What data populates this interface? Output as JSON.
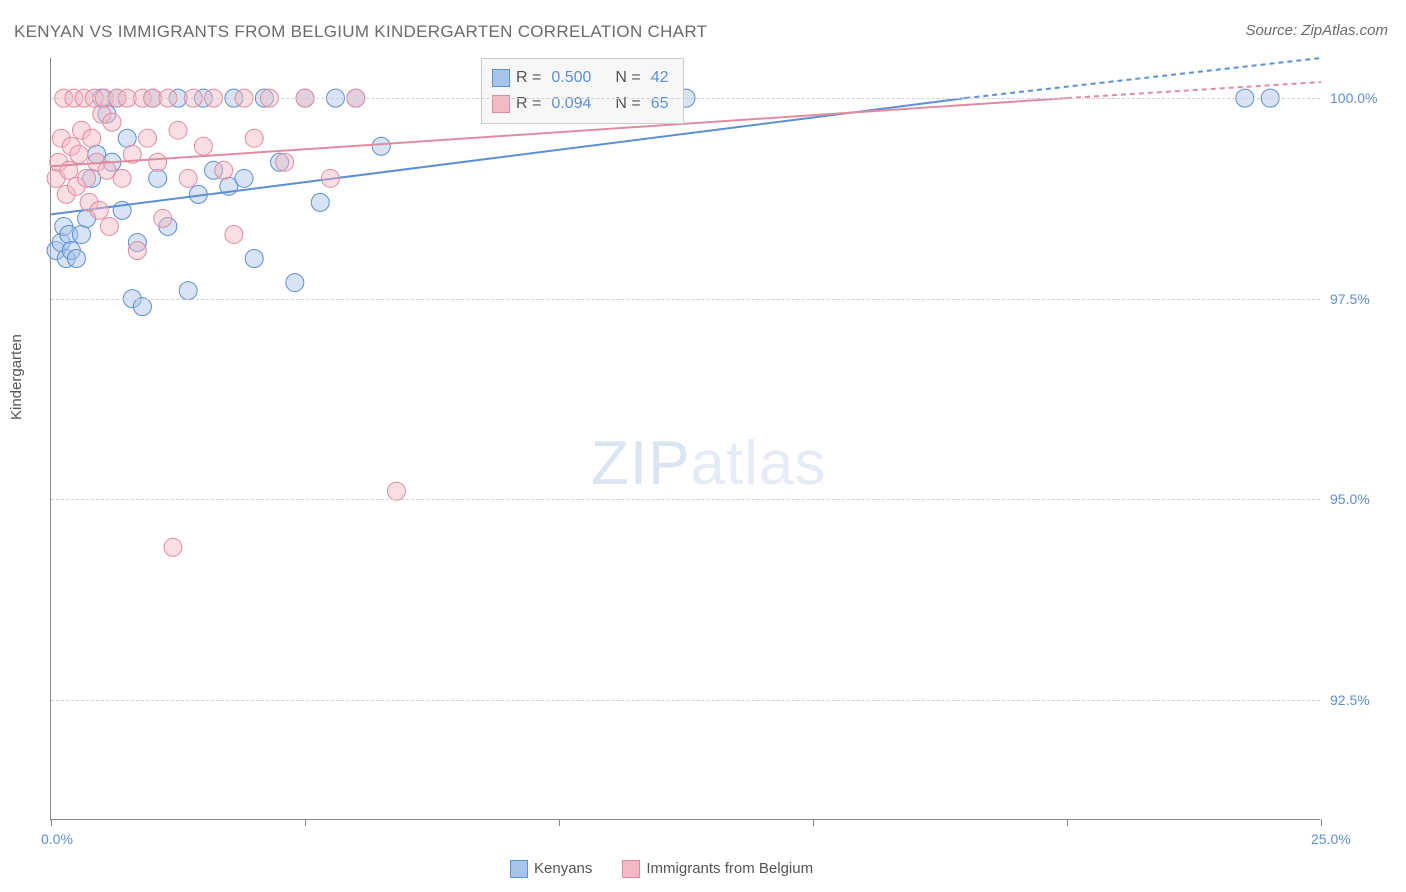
{
  "title": "KENYAN VS IMMIGRANTS FROM BELGIUM KINDERGARTEN CORRELATION CHART",
  "source": "Source: ZipAtlas.com",
  "y_axis_label": "Kindergarten",
  "watermark_zip": "ZIP",
  "watermark_atlas": "atlas",
  "chart": {
    "type": "scatter",
    "background_color": "#ffffff",
    "grid_color": "#d0d0d0",
    "axis_color": "#888888",
    "text_color": "#6b6b6b",
    "tick_label_color": "#5b8fd6",
    "xlim": [
      0.0,
      25.0
    ],
    "ylim": [
      91.0,
      100.5
    ],
    "x_ticks": [
      0.0,
      25.0
    ],
    "x_tick_labels": [
      "0.0%",
      "25.0%"
    ],
    "x_minor_ticks": [
      5.0,
      10.0,
      15.0,
      20.0
    ],
    "y_ticks": [
      92.5,
      95.0,
      97.5,
      100.0
    ],
    "y_tick_labels": [
      "92.5%",
      "95.0%",
      "97.5%",
      "100.0%"
    ],
    "marker_radius": 9,
    "marker_opacity": 0.45,
    "line_width": 2,
    "series": [
      {
        "name": "Kenyans",
        "color": "#5b8fd6",
        "fill": "#a8c4e8",
        "R": "0.500",
        "N": "42",
        "trend": {
          "x1": 0.0,
          "y1": 98.55,
          "x2": 18.0,
          "y2": 100.0
        },
        "trend_dashed": {
          "x1": 18.0,
          "y1": 100.0,
          "x2": 25.0,
          "y2": 100.5
        },
        "points": [
          [
            0.1,
            98.1
          ],
          [
            0.2,
            98.2
          ],
          [
            0.25,
            98.4
          ],
          [
            0.3,
            98.0
          ],
          [
            0.35,
            98.3
          ],
          [
            0.4,
            98.1
          ],
          [
            0.5,
            98.0
          ],
          [
            0.6,
            98.3
          ],
          [
            0.7,
            98.5
          ],
          [
            0.8,
            99.0
          ],
          [
            0.9,
            99.3
          ],
          [
            1.0,
            100.0
          ],
          [
            1.1,
            99.8
          ],
          [
            1.2,
            99.2
          ],
          [
            1.3,
            100.0
          ],
          [
            1.4,
            98.6
          ],
          [
            1.5,
            99.5
          ],
          [
            1.6,
            97.5
          ],
          [
            1.7,
            98.2
          ],
          [
            1.8,
            97.4
          ],
          [
            2.0,
            100.0
          ],
          [
            2.1,
            99.0
          ],
          [
            2.3,
            98.4
          ],
          [
            2.5,
            100.0
          ],
          [
            2.7,
            97.6
          ],
          [
            2.9,
            98.8
          ],
          [
            3.0,
            100.0
          ],
          [
            3.2,
            99.1
          ],
          [
            3.5,
            98.9
          ],
          [
            3.6,
            100.0
          ],
          [
            3.8,
            99.0
          ],
          [
            4.0,
            98.0
          ],
          [
            4.2,
            100.0
          ],
          [
            4.5,
            99.2
          ],
          [
            4.8,
            97.7
          ],
          [
            5.0,
            100.0
          ],
          [
            5.3,
            98.7
          ],
          [
            5.6,
            100.0
          ],
          [
            6.0,
            100.0
          ],
          [
            6.5,
            99.4
          ],
          [
            12.5,
            100.0
          ],
          [
            23.5,
            100.0
          ],
          [
            24.0,
            100.0
          ]
        ]
      },
      {
        "name": "Immigrants from Belgium",
        "color": "#e08ca0",
        "fill": "#f2b8c4",
        "R": "0.094",
        "N": "65",
        "trend": {
          "x1": 0.0,
          "y1": 99.15,
          "x2": 20.0,
          "y2": 100.0
        },
        "trend_dashed": {
          "x1": 20.0,
          "y1": 100.0,
          "x2": 25.0,
          "y2": 100.2
        },
        "points": [
          [
            0.1,
            99.0
          ],
          [
            0.15,
            99.2
          ],
          [
            0.2,
            99.5
          ],
          [
            0.25,
            100.0
          ],
          [
            0.3,
            98.8
          ],
          [
            0.35,
            99.1
          ],
          [
            0.4,
            99.4
          ],
          [
            0.45,
            100.0
          ],
          [
            0.5,
            98.9
          ],
          [
            0.55,
            99.3
          ],
          [
            0.6,
            99.6
          ],
          [
            0.65,
            100.0
          ],
          [
            0.7,
            99.0
          ],
          [
            0.75,
            98.7
          ],
          [
            0.8,
            99.5
          ],
          [
            0.85,
            100.0
          ],
          [
            0.9,
            99.2
          ],
          [
            0.95,
            98.6
          ],
          [
            1.0,
            99.8
          ],
          [
            1.05,
            100.0
          ],
          [
            1.1,
            99.1
          ],
          [
            1.15,
            98.4
          ],
          [
            1.2,
            99.7
          ],
          [
            1.3,
            100.0
          ],
          [
            1.4,
            99.0
          ],
          [
            1.5,
            100.0
          ],
          [
            1.6,
            99.3
          ],
          [
            1.7,
            98.1
          ],
          [
            1.8,
            100.0
          ],
          [
            1.9,
            99.5
          ],
          [
            2.0,
            100.0
          ],
          [
            2.1,
            99.2
          ],
          [
            2.2,
            98.5
          ],
          [
            2.3,
            100.0
          ],
          [
            2.5,
            99.6
          ],
          [
            2.7,
            99.0
          ],
          [
            2.8,
            100.0
          ],
          [
            3.0,
            99.4
          ],
          [
            3.2,
            100.0
          ],
          [
            3.4,
            99.1
          ],
          [
            3.6,
            98.3
          ],
          [
            3.8,
            100.0
          ],
          [
            4.0,
            99.5
          ],
          [
            4.3,
            100.0
          ],
          [
            4.6,
            99.2
          ],
          [
            5.0,
            100.0
          ],
          [
            5.5,
            99.0
          ],
          [
            6.0,
            100.0
          ],
          [
            2.4,
            94.4
          ],
          [
            6.8,
            95.1
          ]
        ]
      }
    ],
    "stats_box": {
      "rows": [
        {
          "swatch_fill": "#a8c4e8",
          "swatch_border": "#5b8fd6",
          "r_label": "R =",
          "r_val": "0.500",
          "n_label": "N =",
          "n_val": "42"
        },
        {
          "swatch_fill": "#f2b8c4",
          "swatch_border": "#e08ca0",
          "r_label": "R =",
          "r_val": "0.094",
          "n_label": "N =",
          "n_val": "65"
        }
      ]
    },
    "bottom_legend": [
      {
        "swatch_fill": "#a8c4e8",
        "swatch_border": "#5b8fd6",
        "label": "Kenyans"
      },
      {
        "swatch_fill": "#f2b8c4",
        "swatch_border": "#e08ca0",
        "label": "Immigrants from Belgium"
      }
    ]
  }
}
